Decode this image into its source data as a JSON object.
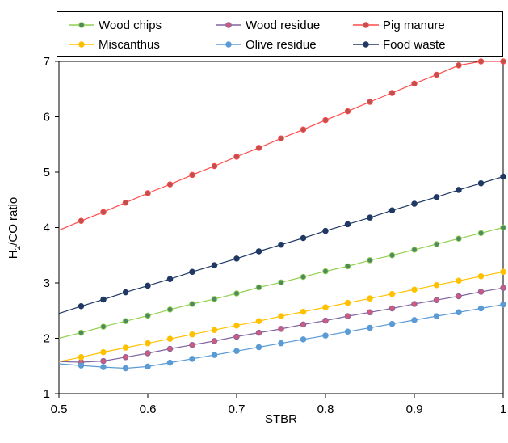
{
  "chart_data": {
    "type": "line",
    "xlabel": "STBR",
    "ylabel": {
      "prefix": "H",
      "sub": "2",
      "suffix": "/CO ratio"
    },
    "xlim": [
      0.5,
      1
    ],
    "ylim": [
      1,
      7
    ],
    "x_ticks": [
      "0.5",
      "0.6",
      "0.7",
      "0.8",
      "0.9",
      "1"
    ],
    "y_ticks": [
      "1",
      "2",
      "3",
      "4",
      "5",
      "6",
      "7"
    ],
    "grid": false,
    "legend_position": "top",
    "series": [
      {
        "name": "Wood chips",
        "color": "#92D050",
        "marker_color": "#4E8A5E",
        "x": [
          0.5,
          0.525,
          0.55,
          0.575,
          0.6,
          0.625,
          0.65,
          0.675,
          0.7,
          0.725,
          0.75,
          0.775,
          0.8,
          0.825,
          0.85,
          0.875,
          0.9,
          0.925,
          0.95,
          0.975,
          1.0
        ],
        "y": [
          2.0,
          2.1,
          2.21,
          2.31,
          2.41,
          2.52,
          2.62,
          2.71,
          2.81,
          2.92,
          3.01,
          3.11,
          3.21,
          3.3,
          3.41,
          3.5,
          3.6,
          3.7,
          3.8,
          3.9,
          4.0
        ]
      },
      {
        "name": "Wood residue",
        "color": "#8064A2",
        "marker_color": "#D05A7A",
        "x": [
          0.5,
          0.525,
          0.55,
          0.575,
          0.6,
          0.625,
          0.65,
          0.675,
          0.7,
          0.725,
          0.75,
          0.775,
          0.8,
          0.825,
          0.85,
          0.875,
          0.9,
          0.925,
          0.95,
          0.975,
          1.0
        ],
        "y": [
          1.58,
          1.57,
          1.59,
          1.66,
          1.73,
          1.81,
          1.88,
          1.95,
          2.03,
          2.1,
          2.17,
          2.25,
          2.32,
          2.4,
          2.47,
          2.54,
          2.62,
          2.69,
          2.76,
          2.84,
          2.91
        ]
      },
      {
        "name": "Pig manure",
        "color": "#FF4B4B",
        "marker_color": "#C0504D",
        "x": [
          0.5,
          0.525,
          0.55,
          0.575,
          0.6,
          0.625,
          0.65,
          0.675,
          0.7,
          0.725,
          0.75,
          0.775,
          0.8,
          0.825,
          0.85,
          0.875,
          0.9,
          0.925,
          0.95,
          0.975,
          1.0
        ],
        "y": [
          3.95,
          4.12,
          4.28,
          4.45,
          4.62,
          4.78,
          4.95,
          5.11,
          5.28,
          5.44,
          5.61,
          5.77,
          5.94,
          6.1,
          6.27,
          6.43,
          6.6,
          6.76,
          6.93,
          7.0,
          7.0
        ]
      },
      {
        "name": "Miscanthus",
        "color": "#FFC000",
        "marker_color": "#FFC000",
        "x": [
          0.5,
          0.525,
          0.55,
          0.575,
          0.6,
          0.625,
          0.65,
          0.675,
          0.7,
          0.725,
          0.75,
          0.775,
          0.8,
          0.825,
          0.85,
          0.875,
          0.9,
          0.925,
          0.95,
          0.975,
          1.0
        ],
        "y": [
          1.58,
          1.66,
          1.75,
          1.83,
          1.91,
          1.99,
          2.07,
          2.15,
          2.23,
          2.31,
          2.4,
          2.48,
          2.56,
          2.64,
          2.72,
          2.8,
          2.88,
          2.96,
          3.04,
          3.12,
          3.2
        ]
      },
      {
        "name": "Olive residue",
        "color": "#5B9BD5",
        "marker_color": "#5B9BD5",
        "x": [
          0.5,
          0.525,
          0.55,
          0.575,
          0.6,
          0.625,
          0.65,
          0.675,
          0.7,
          0.725,
          0.75,
          0.775,
          0.8,
          0.825,
          0.85,
          0.875,
          0.9,
          0.925,
          0.95,
          0.975,
          1.0
        ],
        "y": [
          1.54,
          1.51,
          1.48,
          1.46,
          1.49,
          1.56,
          1.63,
          1.7,
          1.77,
          1.84,
          1.91,
          1.98,
          2.05,
          2.12,
          2.19,
          2.26,
          2.33,
          2.4,
          2.47,
          2.54,
          2.61
        ]
      },
      {
        "name": "Food waste",
        "color": "#1F3864",
        "marker_color": "#1F3864",
        "x": [
          0.5,
          0.525,
          0.55,
          0.575,
          0.6,
          0.625,
          0.65,
          0.675,
          0.7,
          0.725,
          0.75,
          0.775,
          0.8,
          0.825,
          0.85,
          0.875,
          0.9,
          0.925,
          0.95,
          0.975,
          1.0
        ],
        "y": [
          2.45,
          2.58,
          2.7,
          2.83,
          2.95,
          3.07,
          3.2,
          3.32,
          3.44,
          3.57,
          3.69,
          3.81,
          3.94,
          4.06,
          4.18,
          4.31,
          4.43,
          4.55,
          4.68,
          4.8,
          4.92
        ]
      }
    ]
  }
}
